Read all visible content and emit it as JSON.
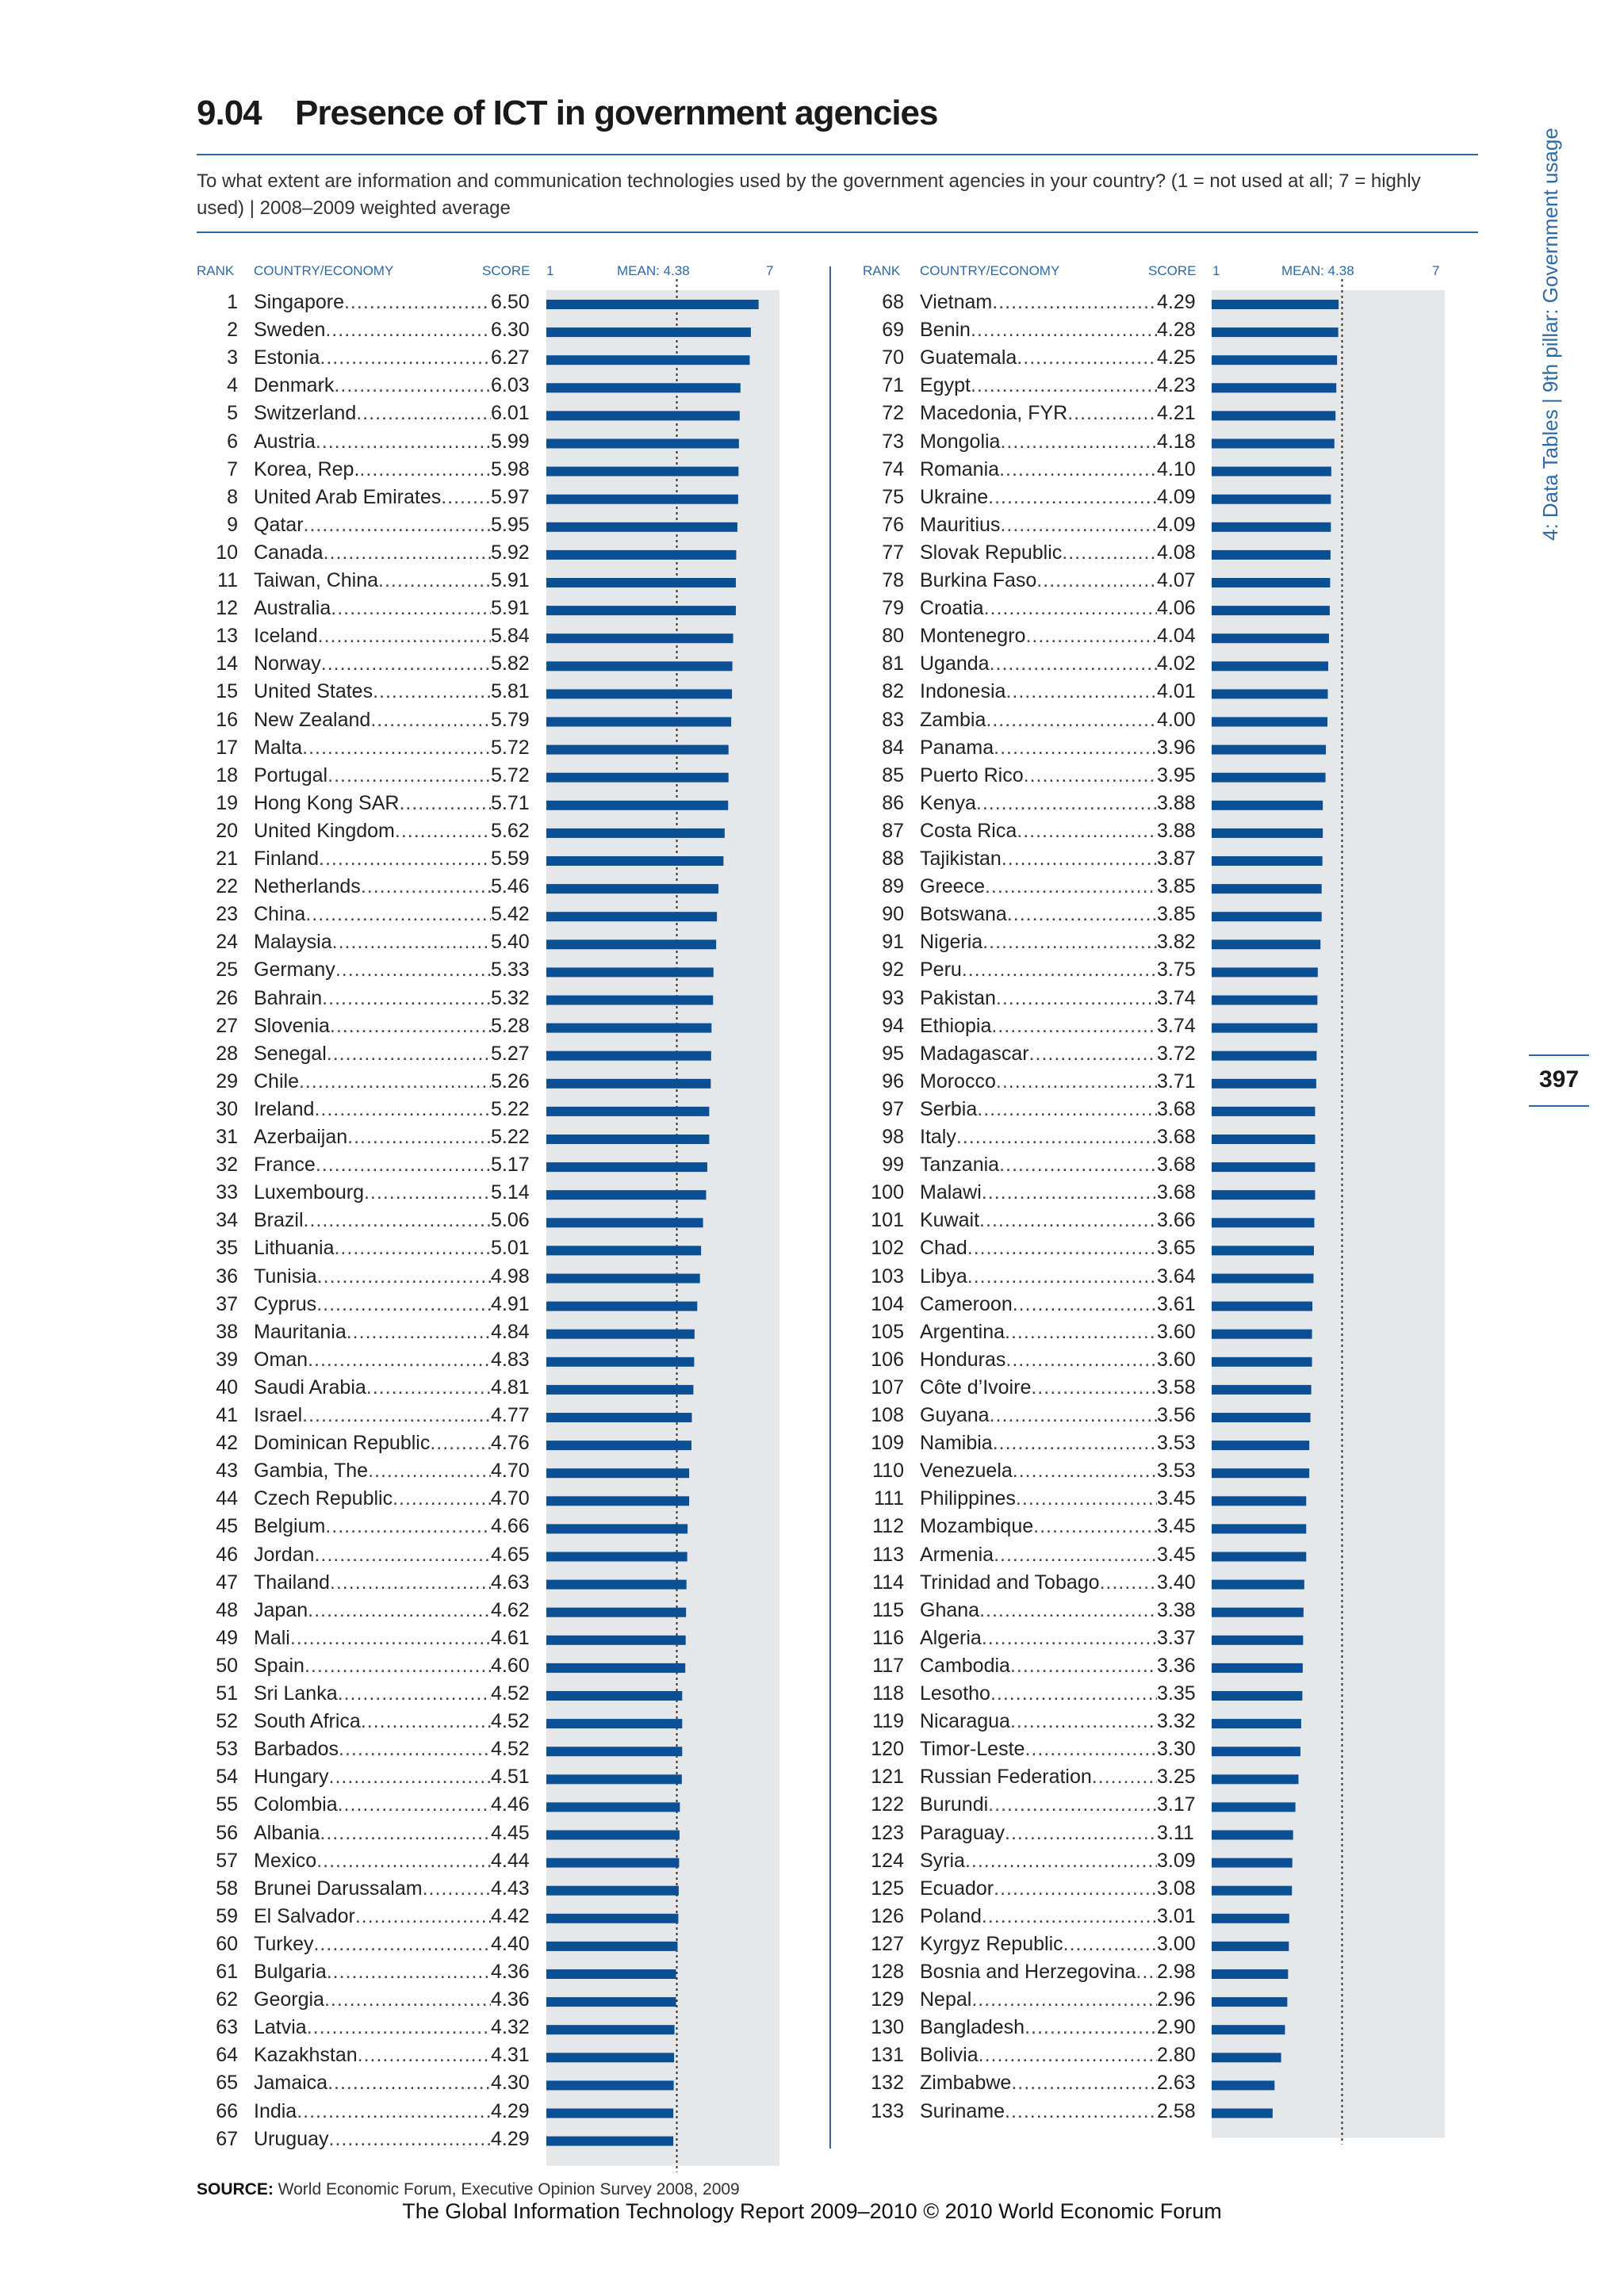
{
  "header": {
    "table_number": "9.04",
    "title": "Presence of ICT in government agencies",
    "question": "To what extent are information and communication technologies used by the government agencies in your country? (1 = not used at all; 7 = highly used)  |  2008–2009 weighted average"
  },
  "columns": {
    "rank": "RANK",
    "country": "COUNTRY/ECONOMY",
    "score": "SCORE",
    "scale_min": "1",
    "mean": "MEAN: 4.38",
    "scale_max": "7"
  },
  "side_label": "4: Data Tables  |  9th pillar: Government usage",
  "page_number": "397",
  "source": {
    "label": "SOURCE:",
    "text": " World Economic Forum, Executive Opinion Survey 2008, 2009"
  },
  "footer": "The Global Information Technology Report 2009–2010 © 2010 World Economic Forum",
  "colors": {
    "bar": "#0b4f95",
    "accent": "#2f6aa6",
    "panel": "#e6e7e9"
  },
  "chart_data": {
    "type": "bar",
    "orientation": "horizontal",
    "xlim": [
      1,
      7
    ],
    "mean": 4.38,
    "categories": [
      "Singapore",
      "Sweden",
      "Estonia",
      "Denmark",
      "Switzerland",
      "Austria",
      "Korea, Rep.",
      "United Arab Emirates",
      "Qatar",
      "Canada",
      "Taiwan, China",
      "Australia",
      "Iceland",
      "Norway",
      "United States",
      "New Zealand",
      "Malta",
      "Portugal",
      "Hong Kong SAR",
      "United Kingdom",
      "Finland",
      "Netherlands",
      "China",
      "Malaysia",
      "Germany",
      "Bahrain",
      "Slovenia",
      "Senegal",
      "Chile",
      "Ireland",
      "Azerbaijan",
      "France",
      "Luxembourg",
      "Brazil",
      "Lithuania",
      "Tunisia",
      "Cyprus",
      "Mauritania",
      "Oman",
      "Saudi Arabia",
      "Israel",
      "Dominican Republic",
      "Gambia, The",
      "Czech Republic",
      "Belgium",
      "Jordan",
      "Thailand",
      "Japan",
      "Mali",
      "Spain",
      "Sri Lanka",
      "South Africa",
      "Barbados",
      "Hungary",
      "Colombia",
      "Albania",
      "Mexico",
      "Brunei Darussalam",
      "El Salvador",
      "Turkey",
      "Bulgaria",
      "Georgia",
      "Latvia",
      "Kazakhstan",
      "Jamaica",
      "India",
      "Uruguay",
      "Vietnam",
      "Benin",
      "Guatemala",
      "Egypt",
      "Macedonia, FYR",
      "Mongolia",
      "Romania",
      "Ukraine",
      "Mauritius",
      "Slovak Republic",
      "Burkina Faso",
      "Croatia",
      "Montenegro",
      "Uganda",
      "Indonesia",
      "Zambia",
      "Panama",
      "Puerto Rico",
      "Kenya",
      "Costa Rica",
      "Tajikistan",
      "Greece",
      "Botswana",
      "Nigeria",
      "Peru",
      "Pakistan",
      "Ethiopia",
      "Madagascar",
      "Morocco",
      "Serbia",
      "Italy",
      "Tanzania",
      "Malawi",
      "Kuwait",
      "Chad",
      "Libya",
      "Cameroon",
      "Argentina",
      "Honduras",
      "Côte d’Ivoire",
      "Guyana",
      "Namibia",
      "Venezuela",
      "Philippines",
      "Mozambique",
      "Armenia",
      "Trinidad and Tobago",
      "Ghana",
      "Algeria",
      "Cambodia",
      "Lesotho",
      "Nicaragua",
      "Timor-Leste",
      "Russian Federation",
      "Burundi",
      "Paraguay",
      "Syria",
      "Ecuador",
      "Poland",
      "Kyrgyz Republic",
      "Bosnia and Herzegovina",
      "Nepal",
      "Bangladesh",
      "Bolivia",
      "Zimbabwe",
      "Suriname"
    ],
    "ranks": [
      "1",
      "2",
      "3",
      "4",
      "5",
      "6",
      "7",
      "8",
      "9",
      "10",
      "11",
      "12",
      "13",
      "14",
      "15",
      "16",
      "17",
      "18",
      "19",
      "20",
      "21",
      "22",
      "23",
      "24",
      "25",
      "26",
      "27",
      "28",
      "29",
      "30",
      "31",
      "32",
      "33",
      "34",
      "35",
      "36",
      "37",
      "38",
      "39",
      "40",
      "41",
      "42",
      "43",
      "44",
      "45",
      "46",
      "47",
      "48",
      "49",
      "50",
      "51",
      "52",
      "53",
      "54",
      "55",
      "56",
      "57",
      "58",
      "59",
      "60",
      "61",
      "62",
      "63",
      "64",
      "65",
      "66",
      "67",
      "68",
      "69",
      "70",
      "71",
      "72",
      "73",
      "74",
      "75",
      "76",
      "77",
      "78",
      "79",
      "80",
      "81",
      "82",
      "83",
      "84",
      "85",
      "86",
      "87",
      "88",
      "89",
      "90",
      "91",
      "92",
      "93",
      "94",
      "95",
      "96",
      "97",
      "98",
      "99",
      "100",
      "101",
      "102",
      "103",
      "104",
      "105",
      "106",
      "107",
      "108",
      "109",
      "110",
      "111",
      "112",
      "113",
      "114",
      "115",
      "116",
      "117",
      "118",
      "119",
      "120",
      "121",
      "122",
      "123",
      "124",
      "125",
      "126",
      "127",
      "128",
      "129",
      "130",
      "131",
      "132",
      "133"
    ],
    "scores": [
      "6.50",
      "6.30",
      "6.27",
      "6.03",
      "6.01",
      "5.99",
      "5.98",
      "5.97",
      "5.95",
      "5.92",
      "5.91",
      "5.91",
      "5.84",
      "5.82",
      "5.81",
      "5.79",
      "5.72",
      "5.72",
      "5.71",
      "5.62",
      "5.59",
      "5.46",
      "5.42",
      "5.40",
      "5.33",
      "5.32",
      "5.28",
      "5.27",
      "5.26",
      "5.22",
      "5.22",
      "5.17",
      "5.14",
      "5.06",
      "5.01",
      "4.98",
      "4.91",
      "4.84",
      "4.83",
      "4.81",
      "4.77",
      "4.76",
      "4.70",
      "4.70",
      "4.66",
      "4.65",
      "4.63",
      "4.62",
      "4.61",
      "4.60",
      "4.52",
      "4.52",
      "4.52",
      "4.51",
      "4.46",
      "4.45",
      "4.44",
      "4.43",
      "4.42",
      "4.40",
      "4.36",
      "4.36",
      "4.32",
      "4.31",
      "4.30",
      "4.29",
      "4.29",
      "4.29",
      "4.28",
      "4.25",
      "4.23",
      "4.21",
      "4.18",
      "4.10",
      "4.09",
      "4.09",
      "4.08",
      "4.07",
      "4.06",
      "4.04",
      "4.02",
      "4.01",
      "4.00",
      "3.96",
      "3.95",
      "3.88",
      "3.88",
      "3.87",
      "3.85",
      "3.85",
      "3.82",
      "3.75",
      "3.74",
      "3.74",
      "3.72",
      "3.71",
      "3.68",
      "3.68",
      "3.68",
      "3.68",
      "3.66",
      "3.65",
      "3.64",
      "3.61",
      "3.60",
      "3.60",
      "3.58",
      "3.56",
      "3.53",
      "3.53",
      "3.45",
      "3.45",
      "3.45",
      "3.40",
      "3.38",
      "3.37",
      "3.36",
      "3.35",
      "3.32",
      "3.30",
      "3.25",
      "3.17",
      "3.11",
      "3.09",
      "3.08",
      "3.01",
      "3.00",
      "2.98",
      "2.96",
      "2.90",
      "2.80",
      "2.63",
      "2.58"
    ]
  }
}
